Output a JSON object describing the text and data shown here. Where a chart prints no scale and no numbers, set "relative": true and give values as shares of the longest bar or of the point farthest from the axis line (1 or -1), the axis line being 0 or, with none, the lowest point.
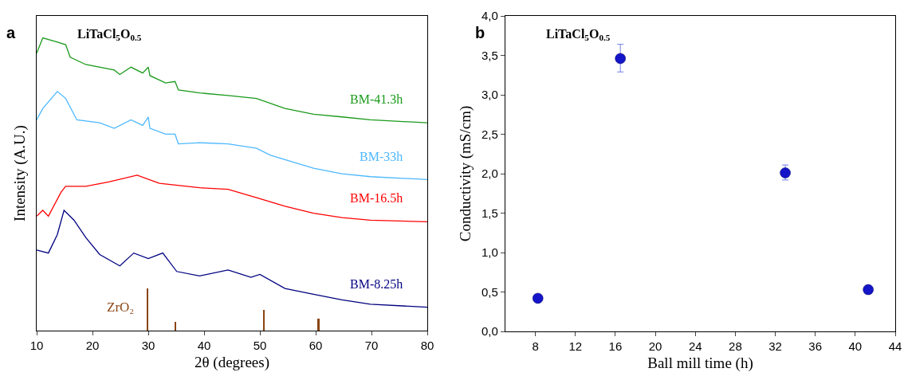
{
  "chart_data": [
    {
      "type": "line",
      "title": "a",
      "annotations": [
        "LiTaCl$_{5}$O$_{0.5}$"
      ],
      "xlabel": "2θ (degrees)",
      "ylabel": "Intensity (A.U.)",
      "relative": true,
      "tick_labels": "x",
      "grid": false,
      "xlim": [
        10,
        80
      ],
      "xticks": [
        10,
        20,
        30,
        40,
        50,
        60,
        70,
        80
      ],
      "series": [
        {
          "name": "BM-41.3h",
          "color": "#1a9a1a",
          "x": [
            10,
            11.1,
            13.5,
            15.2,
            16.0,
            18.8,
            23.9,
            24.9,
            26.9,
            29.0,
            30.0,
            30.3,
            33.1,
            34.8,
            35.4,
            39.2,
            44.3,
            49.4,
            54.5,
            59.6,
            64.7,
            69.8,
            80
          ],
          "values": [
            0.948,
            1,
            0.987,
            0.977,
            0.934,
            0.909,
            0.89,
            0.875,
            0.9,
            0.88,
            0.9,
            0.871,
            0.846,
            0.851,
            0.822,
            0.812,
            0.803,
            0.793,
            0.759,
            0.739,
            0.73,
            0.72,
            0.71
          ]
        },
        {
          "name": "BM-33h",
          "color": "#4db8ff",
          "x": [
            10,
            11.1,
            13.7,
            15.2,
            17.2,
            21.3,
            23.9,
            26.9,
            29.0,
            30.0,
            30.3,
            33.1,
            34.8,
            35.4,
            39.2,
            44.3,
            49.4,
            51.9,
            54.5,
            59.6,
            64.7,
            69.8,
            80
          ],
          "values": [
            0.72,
            0.759,
            0.817,
            0.793,
            0.72,
            0.71,
            0.691,
            0.72,
            0.701,
            0.73,
            0.691,
            0.671,
            0.671,
            0.638,
            0.642,
            0.638,
            0.623,
            0.599,
            0.584,
            0.555,
            0.536,
            0.526,
            0.516
          ]
        },
        {
          "name": "BM-16.5h",
          "color": "#ff0000",
          "x": [
            10,
            11.1,
            12.1,
            14.4,
            15.2,
            18.8,
            22.9,
            28.0,
            32.0,
            39.2,
            44.3,
            49.4,
            54.5,
            59.6,
            64.7,
            69.8,
            80
          ],
          "values": [
            0.391,
            0.411,
            0.391,
            0.474,
            0.493,
            0.493,
            0.508,
            0.531,
            0.503,
            0.488,
            0.483,
            0.454,
            0.425,
            0.401,
            0.386,
            0.377,
            0.372
          ]
        },
        {
          "name": "BM-8.25h",
          "color": "#000080",
          "x": [
            10,
            12.1,
            13.7,
            14.9,
            16.7,
            18.8,
            21.3,
            24.9,
            27.4,
            30.0,
            32.6,
            35.1,
            39.2,
            44.3,
            48.4,
            50.0,
            54.5,
            59.6,
            64.7,
            69.8,
            80
          ],
          "values": [
            0.275,
            0.265,
            0.328,
            0.411,
            0.377,
            0.318,
            0.26,
            0.221,
            0.265,
            0.246,
            0.265,
            0.202,
            0.187,
            0.207,
            0.182,
            0.192,
            0.144,
            0.124,
            0.105,
            0.09,
            0.08
          ]
        },
        {
          "name": "ZrO₂",
          "type": "bar",
          "color": "#8b4513",
          "x": [
            29.9,
            34.8,
            50.7,
            60.5
          ],
          "values": [
            0.144,
            0.03,
            0.071,
            0.042
          ]
        }
      ]
    },
    {
      "type": "scatter",
      "title": "b",
      "annotations": [
        "LiTaCl$_{5}$O$_{0.5}$"
      ],
      "xlabel": "Ball mill time (h)",
      "ylabel": "Conductivity (mS/cm)",
      "grid": false,
      "marker": "circle",
      "xlim": [
        5,
        44
      ],
      "xticks": [
        8,
        12,
        16,
        20,
        24,
        28,
        32,
        36,
        40,
        44
      ],
      "ylim": [
        0,
        4
      ],
      "yticks": [
        {
          "value": 0,
          "label": "0,0"
        },
        {
          "value": 0.5,
          "label": "0,5"
        },
        {
          "value": 1,
          "label": "1,0"
        },
        {
          "value": 1.5,
          "label": "1,5"
        },
        {
          "value": 2,
          "label": "2,0"
        },
        {
          "value": 2.5,
          "label": "2,5"
        },
        {
          "value": 3,
          "label": "3,0"
        },
        {
          "value": 3.5,
          "label": "3,5"
        },
        {
          "value": 4,
          "label": "4,0"
        }
      ],
      "series": [
        {
          "color": "#1414c8",
          "x": [
            8.25,
            16.5,
            33,
            41.3
          ],
          "values": [
            0.42,
            3.46,
            2.01,
            0.53
          ],
          "errors": [
            null,
            [
              3.29,
              3.64
            ],
            [
              1.92,
              2.11
            ],
            null
          ]
        }
      ]
    }
  ]
}
